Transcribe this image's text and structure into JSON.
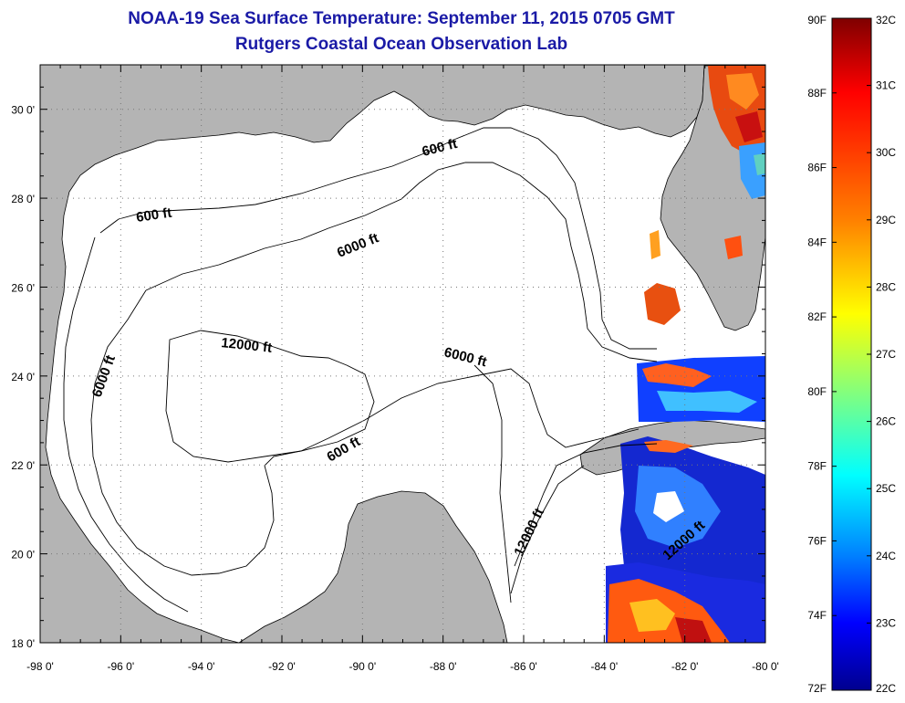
{
  "header": {
    "title": "NOAA-19 Sea Surface Temperature:  September 11, 2015 0705 GMT",
    "subtitle": "Rutgers Coastal Ocean Observation Lab"
  },
  "map": {
    "lon_range": [
      -98,
      -80
    ],
    "lat_range": [
      18,
      31
    ],
    "lon_ticks": [
      "-98 0'",
      "-96 0'",
      "-94 0'",
      "-92 0'",
      "-90 0'",
      "-88 0'",
      "-86 0'",
      "-84 0'",
      "-82 0'",
      "-80 0'"
    ],
    "lat_ticks": [
      "18 0'",
      "20 0'",
      "22 0'",
      "24 0'",
      "26 0'",
      "28 0'",
      "30 0'"
    ],
    "grid": "dotted",
    "land_color": "#b4b4b4",
    "contours": [
      {
        "label": "600 ft"
      },
      {
        "label": "600 ft"
      },
      {
        "label": "600 ft"
      },
      {
        "label": "6000 ft"
      },
      {
        "label": "6000 ft"
      },
      {
        "label": "6000 ft"
      },
      {
        "label": "12000 ft"
      },
      {
        "label": "12000 ft"
      },
      {
        "label": "12000 ft"
      }
    ]
  },
  "colorbar": {
    "f_labels": [
      "90F",
      "88F",
      "86F",
      "84F",
      "82F",
      "80F",
      "78F",
      "76F",
      "74F",
      "72F"
    ],
    "c_labels": [
      "32C",
      "31C",
      "30C",
      "29C",
      "28C",
      "27C",
      "26C",
      "25C",
      "24C",
      "23C",
      "22C"
    ],
    "gradient": [
      "#7f0000",
      "#ff0000",
      "#ff7f00",
      "#ffff00",
      "#7fff7f",
      "#00ffff",
      "#007fff",
      "#0000ff",
      "#00008f"
    ]
  }
}
